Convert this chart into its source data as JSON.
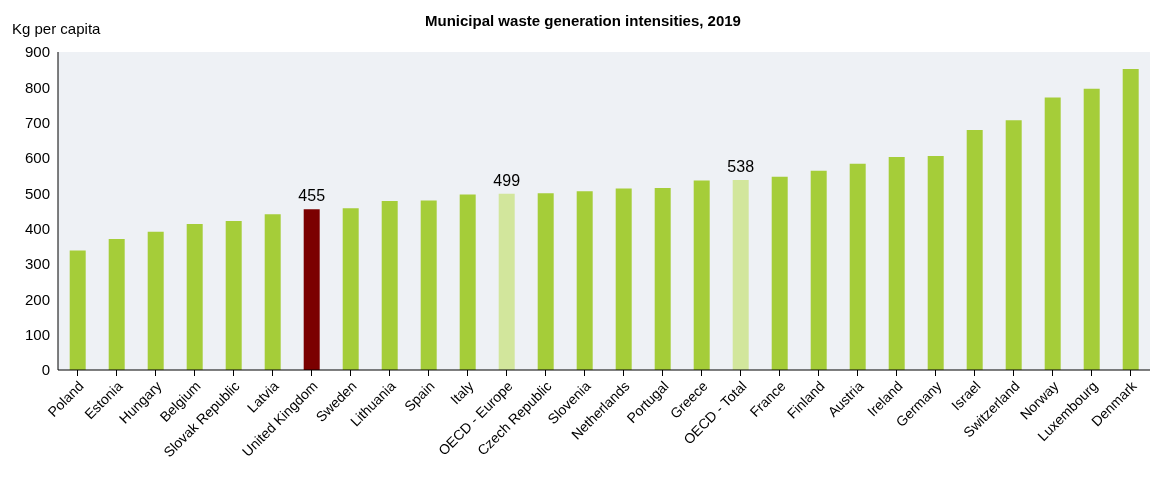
{
  "chart_data": {
    "type": "bar",
    "title": "Municipal waste generation intensities, 2019",
    "ylabel": "Kg per capita",
    "categories": [
      "Poland",
      "Estonia",
      "Hungary",
      "Belgium",
      "Slovak Republic",
      "Latvia",
      "United Kingdom",
      "Sweden",
      "Lithuania",
      "Spain",
      "Italy",
      "OECD - Europe",
      "Czech Republic",
      "Slovenia",
      "Netherlands",
      "Portugal",
      "Greece",
      "OECD - Total",
      "France",
      "Finland",
      "Austria",
      "Ireland",
      "Germany",
      "Israel",
      "Switzerland",
      "Norway",
      "Luxembourg",
      "Denmark"
    ],
    "values": [
      338,
      371,
      391,
      413,
      422,
      441,
      455,
      458,
      478,
      480,
      497,
      499,
      500,
      506,
      514,
      515,
      536,
      538,
      547,
      564,
      584,
      603,
      606,
      679,
      707,
      771,
      796,
      852
    ],
    "colors": [
      "#a5cd39",
      "#a5cd39",
      "#a5cd39",
      "#a5cd39",
      "#a5cd39",
      "#a5cd39",
      "#7b0000",
      "#a5cd39",
      "#a5cd39",
      "#a5cd39",
      "#a5cd39",
      "#d2e69c",
      "#a5cd39",
      "#a5cd39",
      "#a5cd39",
      "#a5cd39",
      "#a5cd39",
      "#d2e69c",
      "#a5cd39",
      "#a5cd39",
      "#a5cd39",
      "#a5cd39",
      "#a5cd39",
      "#a5cd39",
      "#a5cd39",
      "#a5cd39",
      "#a5cd39",
      "#a5cd39"
    ],
    "value_labels": [
      null,
      null,
      null,
      null,
      null,
      null,
      "455",
      null,
      null,
      null,
      null,
      "499",
      null,
      null,
      null,
      null,
      null,
      "538",
      null,
      null,
      null,
      null,
      null,
      null,
      null,
      null,
      null,
      null
    ],
    "ylim": [
      0,
      900
    ],
    "yticks": [
      0,
      100,
      200,
      300,
      400,
      500,
      600,
      700,
      800,
      900
    ]
  }
}
